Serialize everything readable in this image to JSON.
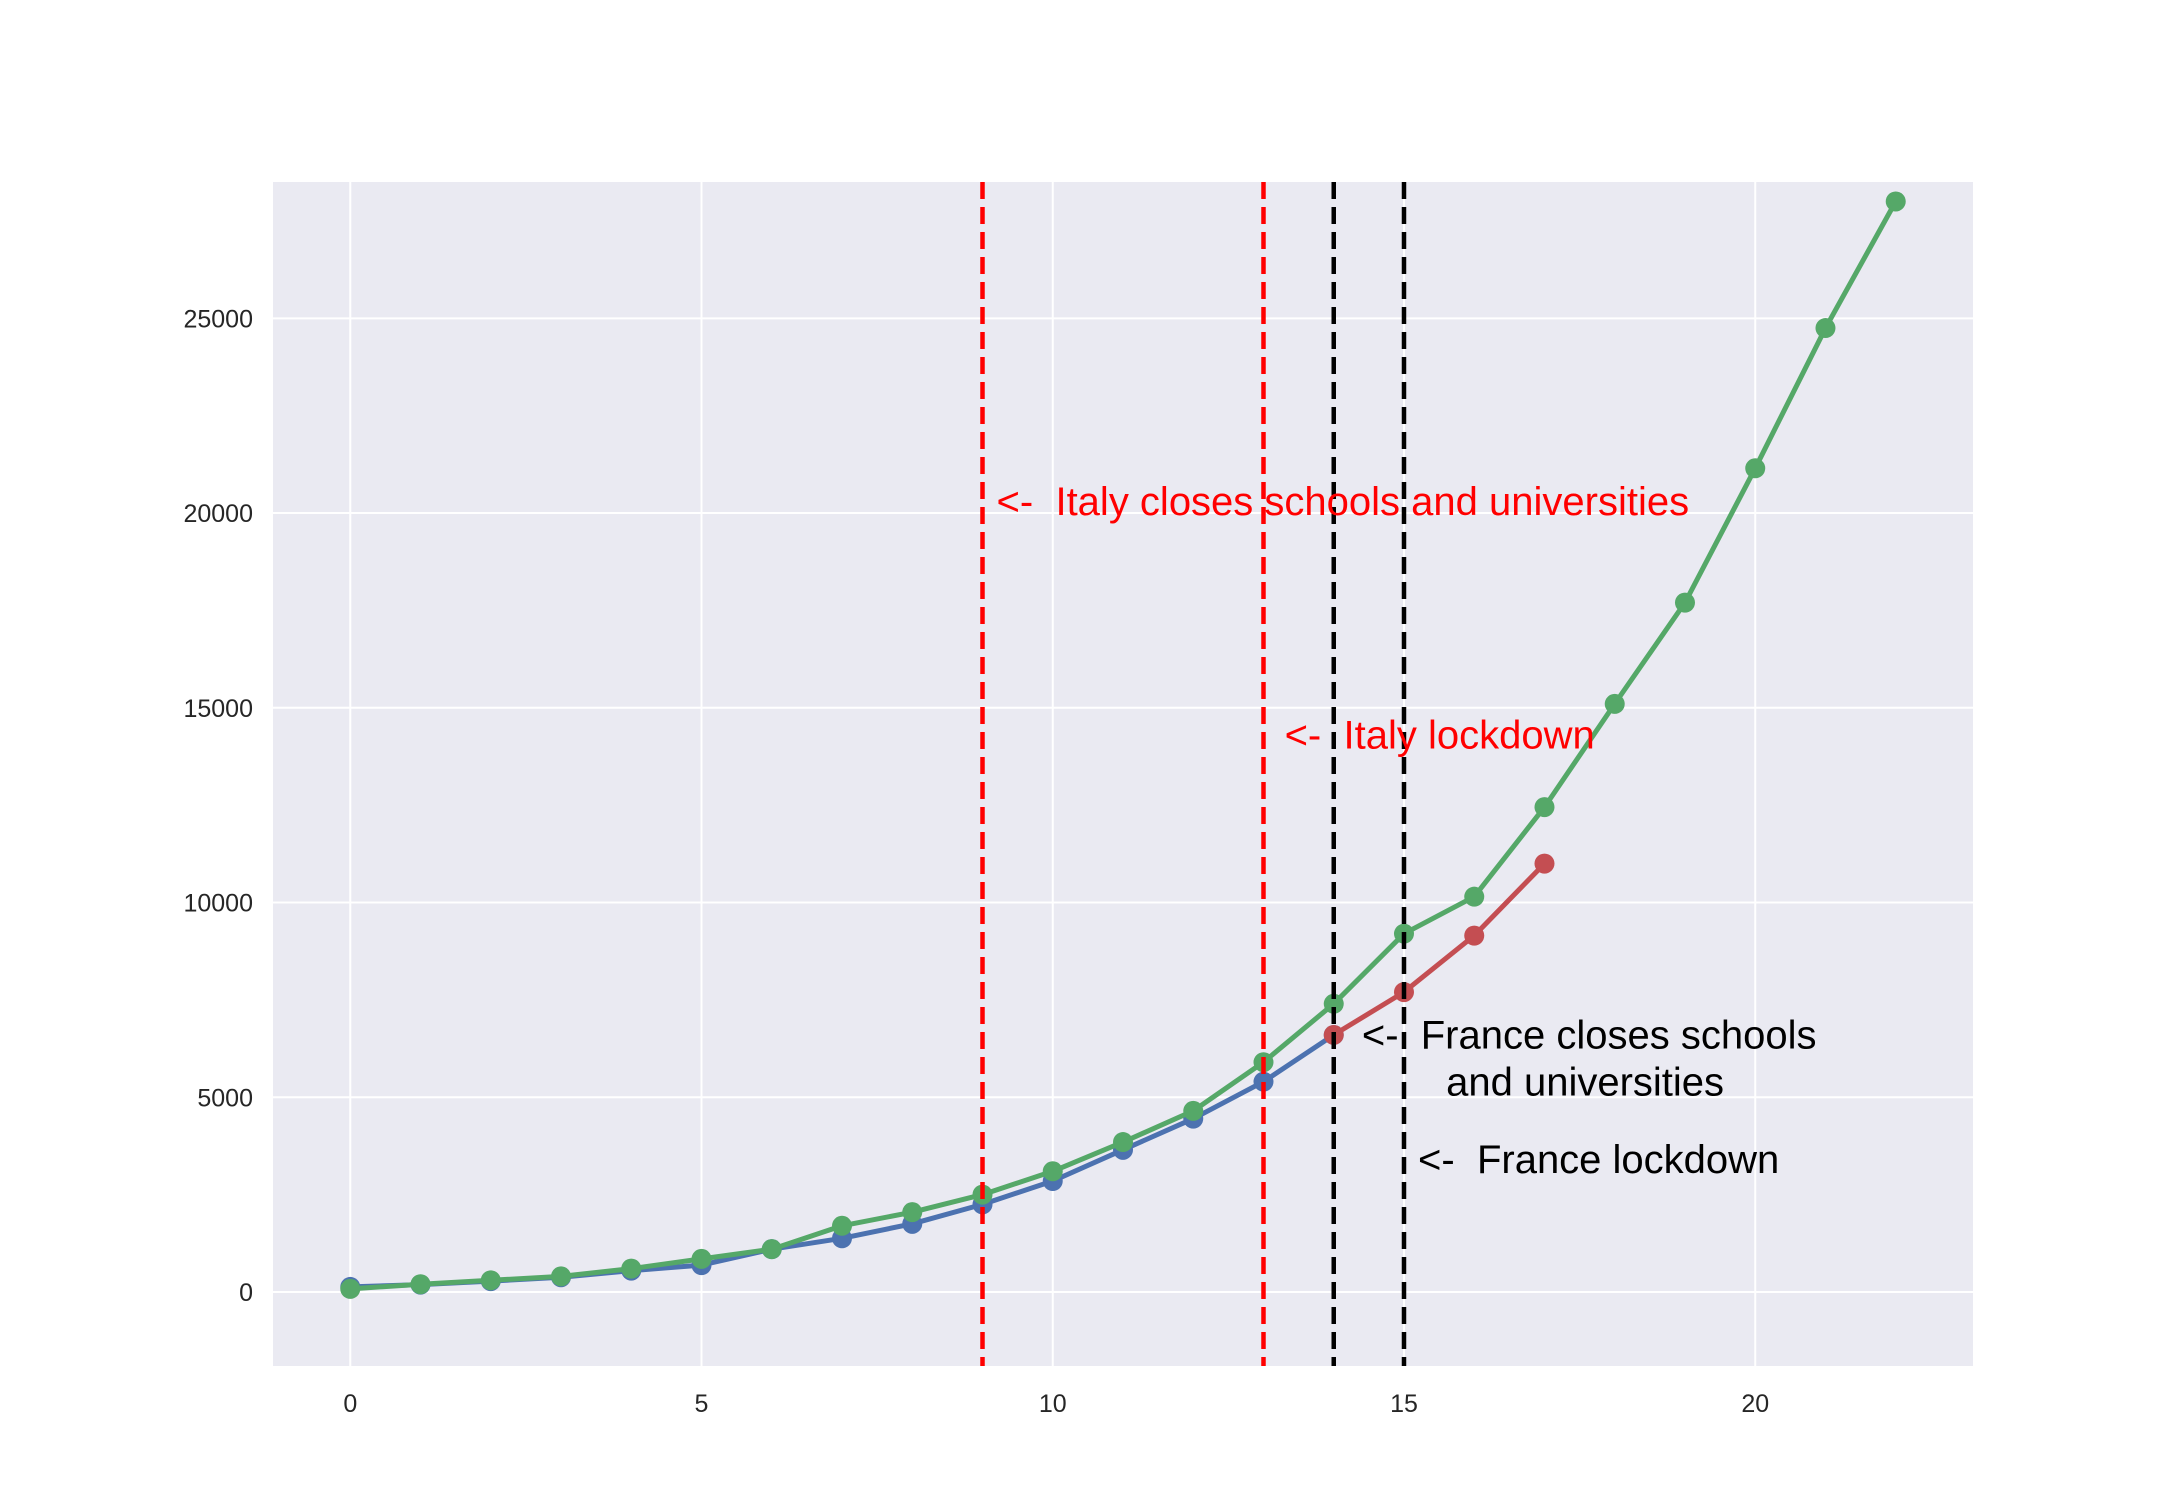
{
  "chart_data": {
    "type": "line",
    "title": "",
    "xlabel": "",
    "ylabel": "",
    "xlim": [
      -1.1,
      23.1
    ],
    "ylim": [
      -1900,
      28500
    ],
    "x_ticks": [
      0,
      5,
      10,
      15,
      20
    ],
    "y_ticks": [
      0,
      5000,
      10000,
      15000,
      20000,
      25000
    ],
    "grid": true,
    "legend": "none",
    "colors": {
      "background": "#ffffff",
      "plot_area": "#eaeaf2",
      "grid": "#ffffff",
      "series_blue": "#4c72b0",
      "series_green": "#55a868",
      "series_red": "#c44e52",
      "italy_marker": "#ff0000",
      "france_marker": "#000000"
    },
    "series": [
      {
        "color": "#4c72b0",
        "x": [
          0,
          1,
          2,
          3,
          4,
          5,
          6,
          7,
          8,
          9,
          10,
          11,
          12,
          13,
          14
        ],
        "values": [
          130,
          190,
          280,
          380,
          550,
          690,
          1100,
          1380,
          1750,
          2250,
          2850,
          3650,
          4450,
          5400,
          6600
        ]
      },
      {
        "color": "#c44e52",
        "x": [
          14,
          15,
          16,
          17
        ],
        "values": [
          6600,
          7700,
          9150,
          11000
        ]
      },
      {
        "color": "#55a868",
        "x": [
          0,
          1,
          2,
          3,
          4,
          5,
          6,
          7,
          8,
          9,
          10,
          11,
          12,
          13,
          14,
          15,
          16,
          17,
          18,
          19,
          20,
          21,
          22
        ],
        "values": [
          80,
          200,
          300,
          400,
          600,
          850,
          1100,
          1700,
          2050,
          2500,
          3100,
          3850,
          4650,
          5900,
          7400,
          9200,
          10150,
          12450,
          15100,
          17700,
          21150,
          24750,
          28000
        ]
      }
    ],
    "vlines": [
      {
        "x": 9,
        "color": "#ff0000",
        "style": "dashed"
      },
      {
        "x": 13,
        "color": "#ff0000",
        "style": "dashed"
      },
      {
        "x": 14,
        "color": "#000000",
        "style": "dashed"
      },
      {
        "x": 15,
        "color": "#000000",
        "style": "dashed"
      }
    ],
    "annotations": [
      {
        "text": "<-  Italy closes schools and universities",
        "x": 9.2,
        "y": 19950,
        "color": "#ff0000"
      },
      {
        "text": "<-  Italy lockdown",
        "x": 13.3,
        "y": 13950,
        "color": "#ff0000"
      },
      {
        "text": "<-  France closes schools",
        "x": 14.4,
        "y": 6250,
        "color": "#000000"
      },
      {
        "text": "and universities",
        "x": 15.6,
        "y": 5050,
        "color": "#000000"
      },
      {
        "text": "<-  France lockdown",
        "x": 15.2,
        "y": 3050,
        "color": "#000000"
      }
    ]
  }
}
